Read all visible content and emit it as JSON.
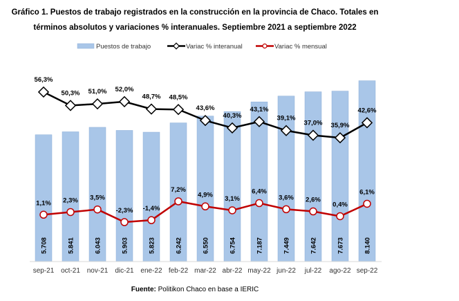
{
  "chart_data": {
    "type": "bar",
    "title_line1": "Gráfico 1. Puestos de trabajo registrados en la construcción en la provincia de Chaco. Totales en",
    "title_line2": "términos absolutos y variaciones % interanuales. Septiembre 2021 a septiembre 2022",
    "categories": [
      "sep-21",
      "oct-21",
      "nov-21",
      "dic-21",
      "ene-22",
      "feb-22",
      "mar-22",
      "abr-22",
      "may-22",
      "jun-22",
      "jul-22",
      "ago-22",
      "sep-22"
    ],
    "series": [
      {
        "name": "Puestos de trabajo",
        "type": "bar",
        "color": "#a9c6e8",
        "values": [
          5708,
          5841,
          6043,
          5903,
          5823,
          6242,
          6550,
          6754,
          7187,
          7449,
          7642,
          7673,
          8140
        ],
        "labels": [
          "5.708",
          "5.841",
          "6.043",
          "5.903",
          "5.823",
          "6.242",
          "6.550",
          "6.754",
          "7.187",
          "7.449",
          "7.642",
          "7.673",
          "8.140"
        ]
      },
      {
        "name": "Variac % interanual",
        "type": "line",
        "color": "#000000",
        "values": [
          56.3,
          50.3,
          51.0,
          52.0,
          48.7,
          48.5,
          43.6,
          40.3,
          43.1,
          39.1,
          37.0,
          35.9,
          42.6
        ],
        "labels": [
          "56,3%",
          "50,3%",
          "51,0%",
          "52,0%",
          "48,7%",
          "48,5%",
          "43,6%",
          "40,3%",
          "43,1%",
          "39,1%",
          "37,0%",
          "35,9%",
          "42,6%"
        ]
      },
      {
        "name": "Variac % mensual",
        "type": "line",
        "color": "#c00000",
        "values": [
          1.1,
          2.3,
          3.5,
          -2.3,
          -1.4,
          7.2,
          4.9,
          3.1,
          6.4,
          3.6,
          2.6,
          0.4,
          6.1
        ],
        "labels": [
          "1,1%",
          "2,3%",
          "3,5%",
          "-2,3%",
          "-1,4%",
          "7,2%",
          "4,9%",
          "3,1%",
          "6,4%",
          "3,6%",
          "2,6%",
          "0,4%",
          "6,1%"
        ]
      }
    ],
    "ylim": [
      0,
      9000
    ],
    "grid": false,
    "legend_position": "top",
    "source_label": "Fuente:",
    "source_text": " Politikon Chaco en base a IERIC"
  }
}
